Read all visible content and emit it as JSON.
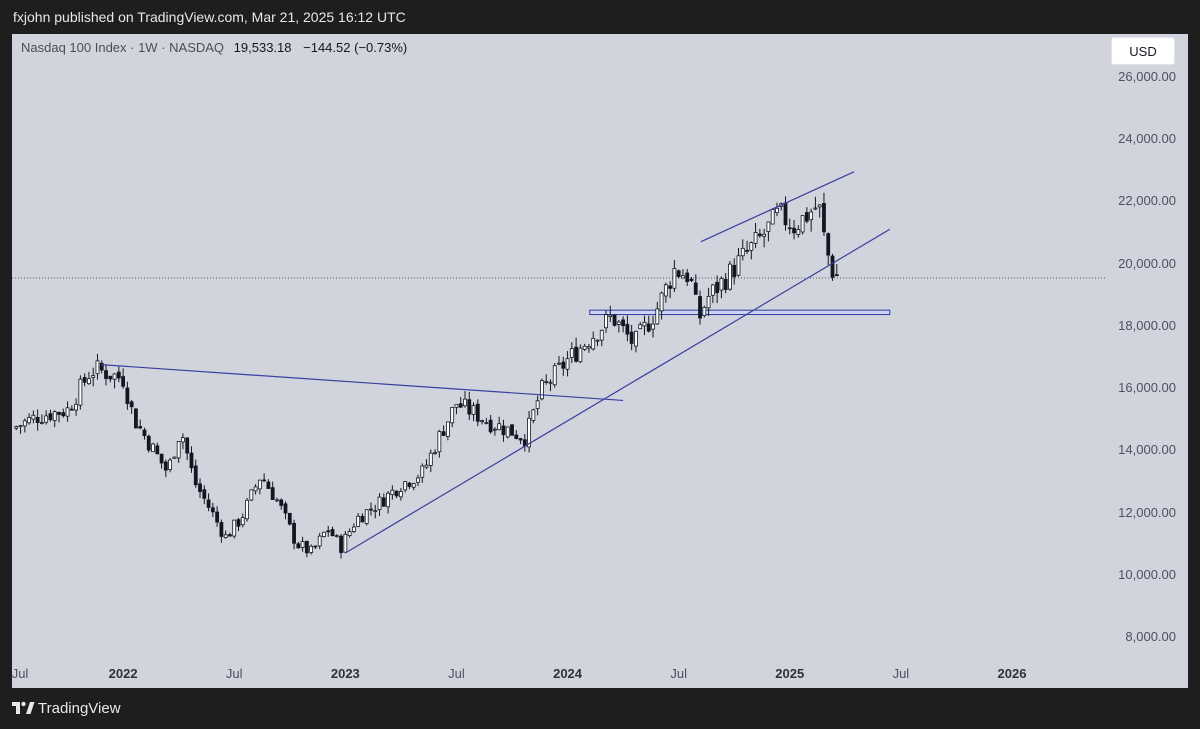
{
  "header": {
    "published_by": "fxjohn published on TradingView.com, Mar 21, 2025 16:12 UTC"
  },
  "legend": {
    "symbol": "Nasdaq 100 Index · 1W · NASDAQ",
    "last": "19,533.18",
    "change": "−144.52 (−0.73%)"
  },
  "currency_button": "USD",
  "footer": {
    "brand": "TradingView",
    "logo_icon": "tradingview-logo-icon"
  },
  "colors": {
    "background": "#d1d4dc",
    "candles": "#131722",
    "trendlines": "#3a40a0",
    "support_zone_fill": "#cdd6f2",
    "support_zone_border": "#2c3aa6"
  },
  "chart_data": {
    "type": "candlestick",
    "title": "Nasdaq 100 Index · 1W · NASDAQ",
    "timeframe": "1W",
    "last_price": 19533.18,
    "change": -144.52,
    "change_pct": -0.73,
    "y_axis": {
      "ylim": [
        7000,
        26800
      ],
      "ticks": [
        8000,
        10000,
        12000,
        14000,
        16000,
        18000,
        20000,
        22000,
        24000,
        26000
      ],
      "tick_labels": [
        "8,000.00",
        "10,000.00",
        "12,000.00",
        "14,000.00",
        "16,000.00",
        "18,000.00",
        "20,000.00",
        "22,000.00",
        "24,000.00",
        "26,000.00"
      ],
      "side": "right"
    },
    "x_axis": {
      "xlim": [
        2021.5,
        2026.45
      ],
      "ticks": [
        {
          "label": "Jul",
          "x": 2021.5,
          "major": false
        },
        {
          "label": "2022",
          "x": 2022.0,
          "major": true
        },
        {
          "label": "Jul",
          "x": 2022.5,
          "major": false
        },
        {
          "label": "2023",
          "x": 2023.0,
          "major": true
        },
        {
          "label": "Jul",
          "x": 2023.5,
          "major": false
        },
        {
          "label": "2024",
          "x": 2024.0,
          "major": true
        },
        {
          "label": "Jul",
          "x": 2024.5,
          "major": false
        },
        {
          "label": "2025",
          "x": 2025.0,
          "major": true
        },
        {
          "label": "Jul",
          "x": 2025.5,
          "major": false
        },
        {
          "label": "2026",
          "x": 2026.0,
          "major": true
        }
      ]
    },
    "price_path": [
      [
        2021.5,
        14700
      ],
      [
        2021.62,
        15100
      ],
      [
        2021.75,
        15300
      ],
      [
        2021.85,
        16500
      ],
      [
        2021.88,
        16600
      ],
      [
        2022.0,
        16300
      ],
      [
        2022.05,
        15000
      ],
      [
        2022.12,
        14200
      ],
      [
        2022.2,
        13300
      ],
      [
        2022.26,
        14700
      ],
      [
        2022.32,
        13000
      ],
      [
        2022.4,
        12000
      ],
      [
        2022.46,
        11200
      ],
      [
        2022.53,
        11800
      ],
      [
        2022.62,
        13200
      ],
      [
        2022.7,
        12300
      ],
      [
        2022.78,
        11000
      ],
      [
        2022.85,
        10700
      ],
      [
        2022.92,
        11500
      ],
      [
        2022.98,
        10900
      ],
      [
        2023.05,
        11800
      ],
      [
        2023.15,
        12300
      ],
      [
        2023.25,
        12900
      ],
      [
        2023.35,
        13300
      ],
      [
        2023.42,
        14400
      ],
      [
        2023.5,
        15500
      ],
      [
        2023.58,
        15200
      ],
      [
        2023.65,
        14900
      ],
      [
        2023.75,
        14600
      ],
      [
        2023.81,
        14400
      ],
      [
        2023.88,
        15900
      ],
      [
        2024.0,
        16900
      ],
      [
        2024.1,
        17600
      ],
      [
        2024.2,
        18300
      ],
      [
        2024.3,
        17400
      ],
      [
        2024.4,
        18500
      ],
      [
        2024.48,
        19800
      ],
      [
        2024.55,
        19600
      ],
      [
        2024.59,
        18200
      ],
      [
        2024.63,
        18900
      ],
      [
        2024.72,
        19600
      ],
      [
        2024.8,
        20300
      ],
      [
        2024.88,
        20900
      ],
      [
        2024.95,
        21600
      ],
      [
        2025.02,
        21200
      ],
      [
        2025.1,
        21700
      ],
      [
        2025.13,
        21900
      ],
      [
        2025.16,
        20600
      ],
      [
        2025.19,
        19800
      ],
      [
        2025.22,
        19533.18
      ]
    ],
    "annotations": [
      {
        "type": "trendline",
        "name": "descending-resistance",
        "points": [
          [
            2021.9,
            16750
          ],
          [
            2024.25,
            15600
          ]
        ]
      },
      {
        "type": "trendline",
        "name": "ascending-support",
        "points": [
          [
            2023.0,
            10700
          ],
          [
            2025.45,
            21100
          ]
        ]
      },
      {
        "type": "trendline",
        "name": "upper-channel",
        "points": [
          [
            2024.6,
            20700
          ],
          [
            2025.29,
            22950
          ]
        ]
      },
      {
        "type": "zone",
        "name": "support-zone",
        "y_range": [
          18360,
          18500
        ],
        "x_range": [
          2024.1,
          2025.45
        ]
      },
      {
        "type": "price-line",
        "name": "last-price-line",
        "y": 19533.18,
        "style": "dotted"
      }
    ]
  }
}
